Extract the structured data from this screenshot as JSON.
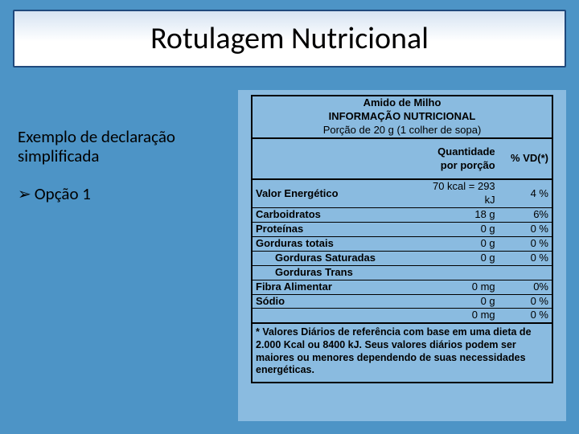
{
  "slide": {
    "bg_color": "#4d94c6",
    "title_border": "#1f497d",
    "title_gradient_top": "#d6e3f2",
    "title_gradient_bottom": "#ffffff",
    "panel_bg": "#8abbe0",
    "title": "Rotulagem Nutricional",
    "subtitle_line1": "Exemplo de declaração",
    "subtitle_line2": "simplificada",
    "bullet_marker": "➢",
    "bullet_text": "Opção 1"
  },
  "table": {
    "product": "Amido de Milho",
    "heading": "INFORMAÇÃO NUTRICIONAL",
    "portion": "Porção de 20 g (1 colher de sopa)",
    "col_qty": "Quantidade por porção",
    "col_vd": "% VD(*)",
    "rows": [
      {
        "name": "Valor Energético",
        "value": "70 kcal = 293 kJ",
        "vd": "4 %",
        "indent": false
      },
      {
        "name": "Carboidratos",
        "value": "18 g",
        "vd": "6%",
        "indent": false
      },
      {
        "name": "Proteínas",
        "value": "0 g",
        "vd": "0 %",
        "indent": false
      },
      {
        "name": "Gorduras totais",
        "value": "0 g",
        "vd": "0 %",
        "indent": false
      },
      {
        "name": "Gorduras Saturadas",
        "value": "0 g",
        "vd": "0 %",
        "indent": true
      },
      {
        "name": "Gorduras Trans",
        "value": "",
        "vd": "",
        "indent": true
      },
      {
        "name": "Fibra Alimentar",
        "value": "0 mg",
        "vd": "0%",
        "indent": false
      },
      {
        "name": "Sódio",
        "value": "0  g",
        "vd": "0 %",
        "indent": false
      },
      {
        "name": "",
        "value": "0 mg",
        "vd": "0 %",
        "indent": false,
        "blankname": true
      }
    ],
    "footnote": "* Valores Diários de referência com base em uma dieta de 2.000 Kcal ou 8400 kJ. Seus valores diários podem ser maiores ou menores dependendo de suas necessidades energéticas."
  }
}
